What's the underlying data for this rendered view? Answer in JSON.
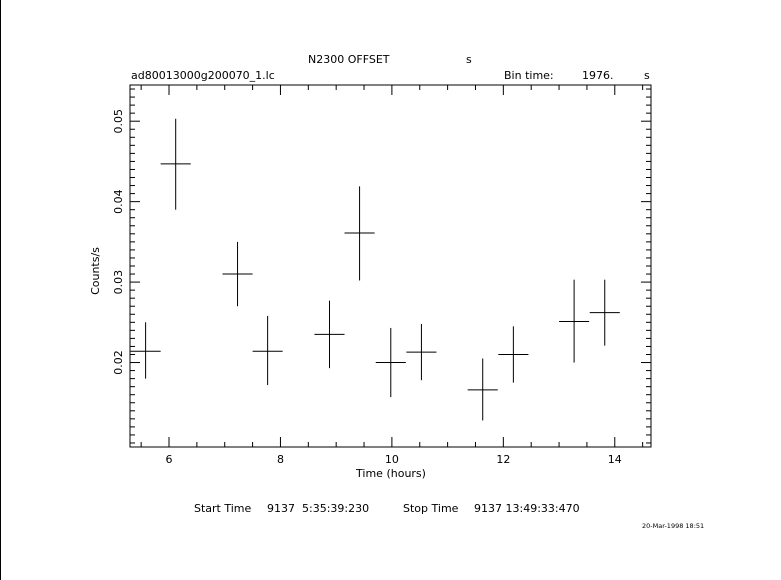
{
  "chart_data": {
    "type": "scatter",
    "title": "N2300 OFFSET",
    "title_suffix": "s",
    "file_label": "ad80013000g200070_1.lc",
    "bin_time_label": "Bin time:",
    "bin_time_value": "1976.",
    "bin_time_unit": "s",
    "xlabel": "Time (hours)",
    "ylabel": "Counts/s",
    "xlim": [
      5.3,
      14.65
    ],
    "ylim": [
      0.0095,
      0.0545
    ],
    "x_major_ticks": [
      6,
      8,
      10,
      12,
      14
    ],
    "x_tick_labels": [
      "6",
      "8",
      "10",
      "12",
      "14"
    ],
    "y_major_ticks": [
      0.02,
      0.03,
      0.04,
      0.05
    ],
    "y_tick_labels": [
      "0.02",
      "0.03",
      "0.04",
      "0.05"
    ],
    "x_minor_step": 0.5,
    "y_minor_step": 0.001,
    "series": [
      {
        "points": [
          {
            "x": 5.58,
            "xerr": 0.27,
            "y": 0.0214,
            "ylo": 0.018,
            "yhi": 0.025
          },
          {
            "x": 6.12,
            "xerr": 0.27,
            "y": 0.0447,
            "ylo": 0.039,
            "yhi": 0.0503
          },
          {
            "x": 7.23,
            "xerr": 0.27,
            "y": 0.031,
            "ylo": 0.027,
            "yhi": 0.035
          },
          {
            "x": 7.77,
            "xerr": 0.27,
            "y": 0.0214,
            "ylo": 0.0172,
            "yhi": 0.0258
          },
          {
            "x": 8.88,
            "xerr": 0.27,
            "y": 0.0235,
            "ylo": 0.0193,
            "yhi": 0.0277
          },
          {
            "x": 9.42,
            "xerr": 0.27,
            "y": 0.0361,
            "ylo": 0.0302,
            "yhi": 0.0419
          },
          {
            "x": 9.98,
            "xerr": 0.27,
            "y": 0.02,
            "ylo": 0.0157,
            "yhi": 0.0243
          },
          {
            "x": 10.53,
            "xerr": 0.27,
            "y": 0.0213,
            "ylo": 0.0178,
            "yhi": 0.0248
          },
          {
            "x": 11.63,
            "xerr": 0.27,
            "y": 0.0166,
            "ylo": 0.0128,
            "yhi": 0.0205
          },
          {
            "x": 12.18,
            "xerr": 0.27,
            "y": 0.021,
            "ylo": 0.0175,
            "yhi": 0.0245
          },
          {
            "x": 13.27,
            "xerr": 0.27,
            "y": 0.0251,
            "ylo": 0.02,
            "yhi": 0.0303
          },
          {
            "x": 13.82,
            "xerr": 0.27,
            "y": 0.0262,
            "ylo": 0.0221,
            "yhi": 0.0303
          }
        ]
      }
    ]
  },
  "footer": {
    "start_label": "Start Time",
    "start_value": "9137  5:35:39:230",
    "stop_label": "Stop Time",
    "stop_value": "9137 13:49:33:470",
    "timestamp": "20-Mar-1998 18:51"
  }
}
